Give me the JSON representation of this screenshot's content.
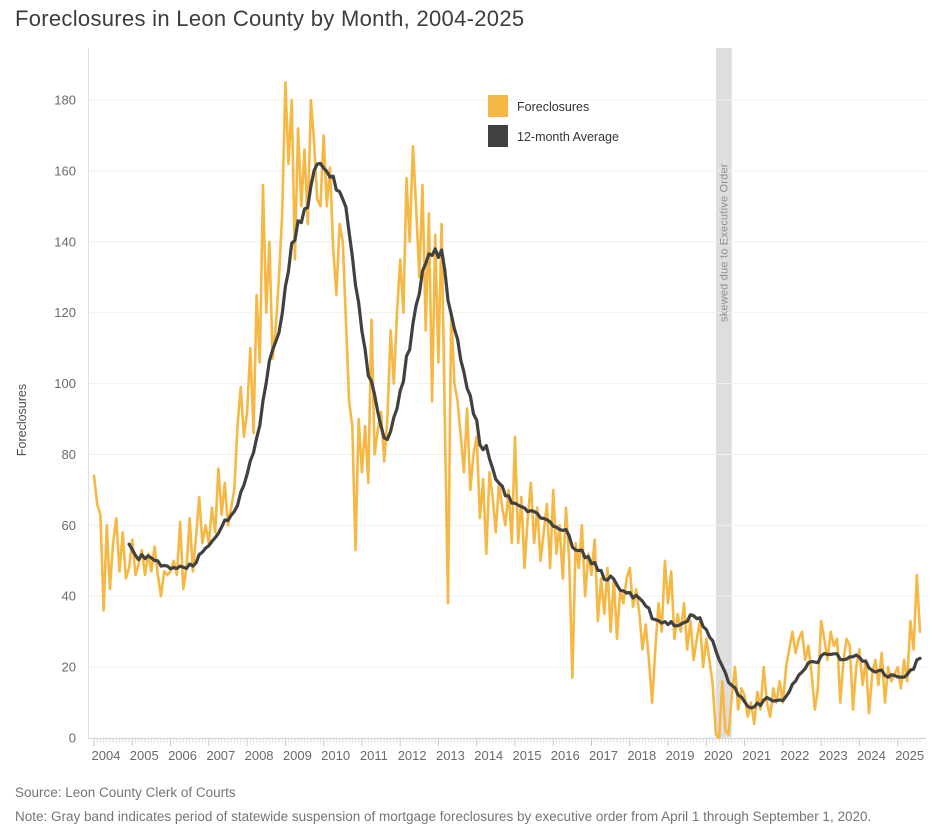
{
  "title": "Foreclosures in Leon County by Month, 2004-2025",
  "legend": {
    "series1": "Foreclosures",
    "series2": "12-month Average"
  },
  "band_label": "skewed due to Executive Order",
  "footer": {
    "source": "Source: Leon County Clerk of Courts",
    "note": "Note: Gray band indicates period of statewide suspension of mortgage foreclosures by executive order from April 1 through September 1, 2020."
  },
  "colors": {
    "foreclosures": "#F6B844",
    "average": "#414141",
    "band": "#DEDEDE",
    "grid": "#F0F0F0",
    "axis_line": "#E0E0E0",
    "tick_major": "#C6C6C6",
    "tick_minor": "#DEDEDE",
    "tick_text": "#6A6A6A",
    "band_text": "#8E8E8E",
    "legend_text": "#333333",
    "y_title_text": "#4D4D4D"
  },
  "chart_data": {
    "type": "line",
    "title": "Foreclosures in Leon County by Month, 2004-2025",
    "xlabel": "",
    "ylabel": "Foreclosures",
    "x_start": "2004-01",
    "x_end": "2025-08",
    "x_tick_labels": [
      "2004",
      "2005",
      "2006",
      "2007",
      "2008",
      "2009",
      "2010",
      "2011",
      "2012",
      "2013",
      "2014",
      "2015",
      "2016",
      "2017",
      "2018",
      "2019",
      "2020",
      "2021",
      "2022",
      "2023",
      "2024",
      "2025"
    ],
    "y_ticks": [
      0,
      20,
      40,
      60,
      80,
      100,
      120,
      140,
      160,
      180
    ],
    "ylim": [
      0,
      195
    ],
    "grid": "horizontal",
    "legend_position": "upper-middle",
    "annotation_band": {
      "from": "2020-04",
      "to": "2020-09",
      "label": "skewed due to Executive Order"
    },
    "series": [
      {
        "name": "Foreclosures",
        "color": "#F6B844",
        "frequency": "monthly",
        "values": [
          74,
          66,
          63,
          36,
          60,
          42,
          55,
          62,
          47,
          58,
          45,
          48,
          56,
          46,
          49,
          53,
          46,
          52,
          47,
          54,
          46,
          40,
          47,
          46,
          47,
          50,
          46,
          61,
          42,
          48,
          62,
          47,
          57,
          68,
          55,
          60,
          55,
          65,
          58,
          76,
          63,
          72,
          60,
          65,
          70,
          88,
          99,
          85,
          92,
          110,
          86,
          125,
          106,
          156,
          120,
          140,
          107,
          116,
          130,
          148,
          185,
          162,
          180,
          135,
          172,
          150,
          166,
          145,
          180,
          168,
          152,
          150,
          170,
          150,
          161,
          138,
          125,
          145,
          140,
          118,
          95,
          88,
          53,
          90,
          75,
          88,
          72,
          118,
          80,
          87,
          92,
          78,
          90,
          115,
          100,
          120,
          135,
          120,
          158,
          140,
          167,
          150,
          130,
          156,
          115,
          148,
          95,
          142,
          106,
          145,
          90,
          38,
          120,
          100,
          95,
          85,
          75,
          93,
          70,
          80,
          85,
          62,
          73,
          52,
          75,
          68,
          58,
          72,
          65,
          60,
          70,
          55,
          85,
          55,
          68,
          48,
          62,
          72,
          55,
          65,
          50,
          58,
          66,
          48,
          70,
          52,
          60,
          45,
          65,
          50,
          17,
          55,
          48,
          60,
          40,
          52,
          46,
          56,
          33,
          45,
          35,
          48,
          30,
          45,
          28,
          42,
          38,
          45,
          48,
          37,
          42,
          35,
          25,
          32,
          22,
          10,
          25,
          38,
          30,
          50,
          38,
          47,
          28,
          35,
          30,
          38,
          25,
          33,
          22,
          28,
          33,
          20,
          28,
          22,
          15,
          1,
          0,
          16,
          2,
          1,
          12,
          20,
          8,
          14,
          12,
          6,
          10,
          4,
          13,
          8,
          20,
          10,
          6,
          14,
          10,
          16,
          10,
          20,
          25,
          30,
          24,
          28,
          30,
          22,
          26,
          18,
          8,
          14,
          33,
          28,
          22,
          30,
          26,
          28,
          10,
          22,
          28,
          26,
          8,
          20,
          25,
          15,
          22,
          7,
          18,
          22,
          15,
          24,
          10,
          20,
          16,
          18,
          20,
          14,
          22,
          16,
          33,
          25,
          46,
          30
        ]
      },
      {
        "name": "12-month Average",
        "color": "#414141",
        "derived": "trailing 12-month mean of the Foreclosures series, plotted from 2004-12 onward"
      }
    ]
  }
}
